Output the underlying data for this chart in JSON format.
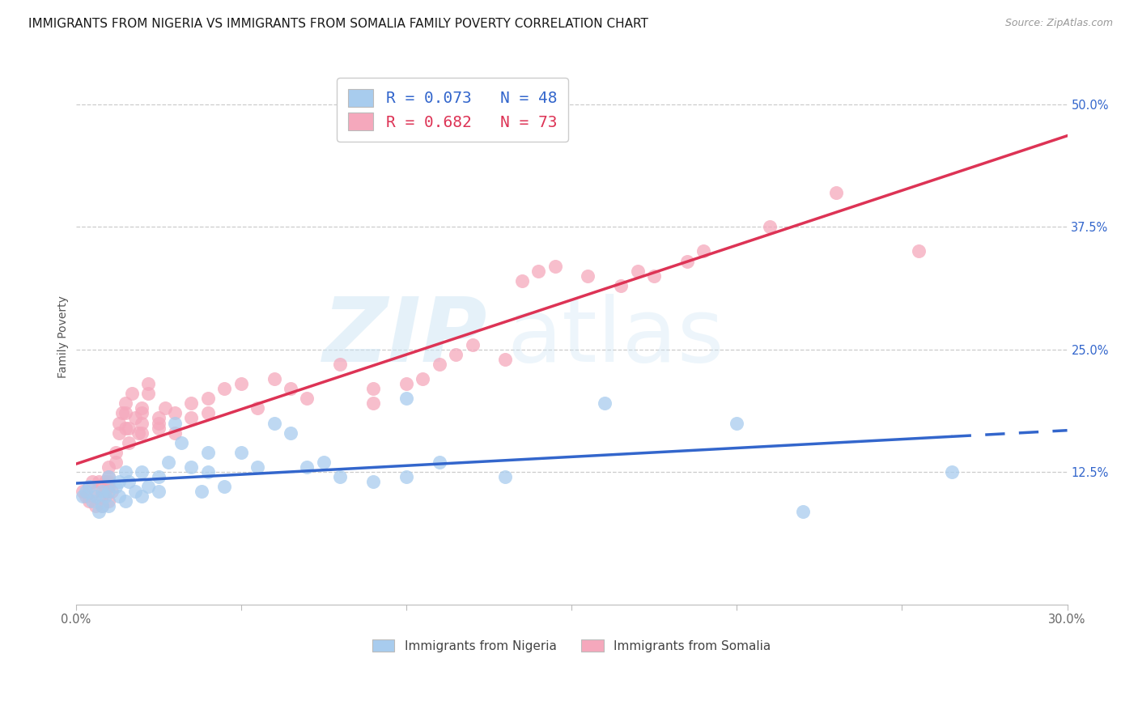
{
  "title": "IMMIGRANTS FROM NIGERIA VS IMMIGRANTS FROM SOMALIA FAMILY POVERTY CORRELATION CHART",
  "source": "Source: ZipAtlas.com",
  "ylabel": "Family Poverty",
  "xlim": [
    0.0,
    0.3
  ],
  "ylim": [
    -0.01,
    0.535
  ],
  "xticks": [
    0.0,
    0.05,
    0.1,
    0.15,
    0.2,
    0.25,
    0.3
  ],
  "xticklabels": [
    "0.0%",
    "",
    "",
    "",
    "",
    "",
    "30.0%"
  ],
  "yticks": [
    0.125,
    0.25,
    0.375,
    0.5
  ],
  "yticklabels": [
    "12.5%",
    "25.0%",
    "37.5%",
    "50.0%"
  ],
  "nigeria_color": "#a8ccee",
  "somalia_color": "#f5a8bc",
  "nigeria_line_color": "#3366cc",
  "somalia_line_color": "#dd3355",
  "legend_nigeria_label": "R = 0.073   N = 48",
  "legend_somalia_label": "R = 0.682   N = 73",
  "watermark_zip": "ZIP",
  "watermark_atlas": "atlas",
  "nigeria_scatter_x": [
    0.002,
    0.003,
    0.004,
    0.005,
    0.006,
    0.007,
    0.008,
    0.008,
    0.009,
    0.01,
    0.01,
    0.01,
    0.012,
    0.013,
    0.013,
    0.015,
    0.015,
    0.016,
    0.018,
    0.02,
    0.02,
    0.022,
    0.025,
    0.025,
    0.028,
    0.03,
    0.032,
    0.035,
    0.038,
    0.04,
    0.04,
    0.045,
    0.05,
    0.055,
    0.06,
    0.065,
    0.07,
    0.075,
    0.08,
    0.09,
    0.1,
    0.1,
    0.11,
    0.13,
    0.16,
    0.2,
    0.22,
    0.265
  ],
  "nigeria_scatter_y": [
    0.1,
    0.105,
    0.11,
    0.095,
    0.1,
    0.085,
    0.105,
    0.09,
    0.1,
    0.12,
    0.105,
    0.09,
    0.11,
    0.1,
    0.115,
    0.125,
    0.095,
    0.115,
    0.105,
    0.125,
    0.1,
    0.11,
    0.12,
    0.105,
    0.135,
    0.175,
    0.155,
    0.13,
    0.105,
    0.145,
    0.125,
    0.11,
    0.145,
    0.13,
    0.175,
    0.165,
    0.13,
    0.135,
    0.12,
    0.115,
    0.12,
    0.2,
    0.135,
    0.12,
    0.195,
    0.175,
    0.085,
    0.125
  ],
  "somalia_scatter_x": [
    0.002,
    0.003,
    0.004,
    0.005,
    0.006,
    0.006,
    0.007,
    0.008,
    0.008,
    0.009,
    0.009,
    0.01,
    0.01,
    0.01,
    0.01,
    0.01,
    0.011,
    0.012,
    0.012,
    0.013,
    0.013,
    0.014,
    0.015,
    0.015,
    0.015,
    0.016,
    0.016,
    0.017,
    0.018,
    0.019,
    0.02,
    0.02,
    0.02,
    0.02,
    0.022,
    0.022,
    0.025,
    0.025,
    0.025,
    0.027,
    0.03,
    0.03,
    0.035,
    0.035,
    0.04,
    0.04,
    0.045,
    0.05,
    0.055,
    0.06,
    0.065,
    0.07,
    0.08,
    0.09,
    0.09,
    0.1,
    0.105,
    0.11,
    0.115,
    0.12,
    0.13,
    0.135,
    0.14,
    0.145,
    0.155,
    0.165,
    0.17,
    0.175,
    0.185,
    0.19,
    0.21,
    0.23,
    0.255
  ],
  "somalia_scatter_y": [
    0.105,
    0.1,
    0.095,
    0.115,
    0.105,
    0.09,
    0.115,
    0.1,
    0.09,
    0.115,
    0.105,
    0.12,
    0.11,
    0.095,
    0.13,
    0.115,
    0.105,
    0.145,
    0.135,
    0.175,
    0.165,
    0.185,
    0.17,
    0.185,
    0.195,
    0.155,
    0.17,
    0.205,
    0.18,
    0.165,
    0.185,
    0.165,
    0.19,
    0.175,
    0.215,
    0.205,
    0.17,
    0.18,
    0.175,
    0.19,
    0.185,
    0.165,
    0.195,
    0.18,
    0.2,
    0.185,
    0.21,
    0.215,
    0.19,
    0.22,
    0.21,
    0.2,
    0.235,
    0.195,
    0.21,
    0.215,
    0.22,
    0.235,
    0.245,
    0.255,
    0.24,
    0.32,
    0.33,
    0.335,
    0.325,
    0.315,
    0.33,
    0.325,
    0.34,
    0.35,
    0.375,
    0.41,
    0.35
  ],
  "background_color": "#ffffff",
  "title_fontsize": 11,
  "axis_label_fontsize": 10,
  "tick_fontsize": 10.5
}
